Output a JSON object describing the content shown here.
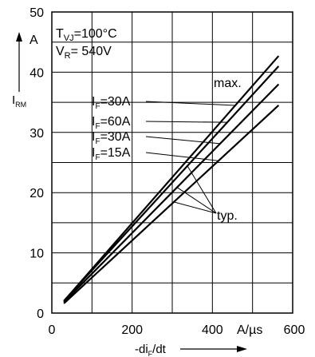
{
  "chart_data": {
    "type": "line",
    "title": "",
    "conditions": {
      "tvj": {
        "main": "T",
        "sub": "VJ",
        "rest": "=100°C"
      },
      "vr": {
        "main": "V",
        "sub": "R",
        "rest": "= 540V"
      }
    },
    "ylabel": {
      "main": "I",
      "sub": "RM",
      "unit": "A"
    },
    "xlabel": {
      "prefix": "-di",
      "sub": "F",
      "suffix": "/dt",
      "unit": "A/µs"
    },
    "xlim": [
      0,
      600
    ],
    "ylim": [
      0,
      50
    ],
    "xticks": [
      0,
      200,
      400,
      600
    ],
    "xtick_labels": [
      "0",
      "200",
      "400",
      ""
    ],
    "yticks": [
      0,
      10,
      20,
      30,
      40,
      50
    ],
    "ytick_labels": [
      "0",
      "10",
      "20",
      "30",
      "40",
      "50"
    ],
    "grid": true,
    "series": [
      {
        "label_main": "I",
        "label_sub": "F",
        "label_rest": "=30A",
        "x": [
          30,
          565
        ],
        "y": [
          2.0,
          42.7
        ]
      },
      {
        "label_main": "I",
        "label_sub": "F",
        "label_rest": "=60A",
        "x": [
          30,
          565
        ],
        "y": [
          2.0,
          41.0
        ]
      },
      {
        "label_main": "I",
        "label_sub": "F",
        "label_rest": "=30A",
        "x": [
          30,
          565
        ],
        "y": [
          1.8,
          38.0
        ]
      },
      {
        "label_main": "I",
        "label_sub": "F",
        "label_rest": "=15A",
        "x": [
          30,
          565
        ],
        "y": [
          1.6,
          34.5
        ]
      }
    ],
    "annotations": {
      "max": "max.",
      "typ": "typ."
    },
    "x_unit_extra_label": "600"
  }
}
